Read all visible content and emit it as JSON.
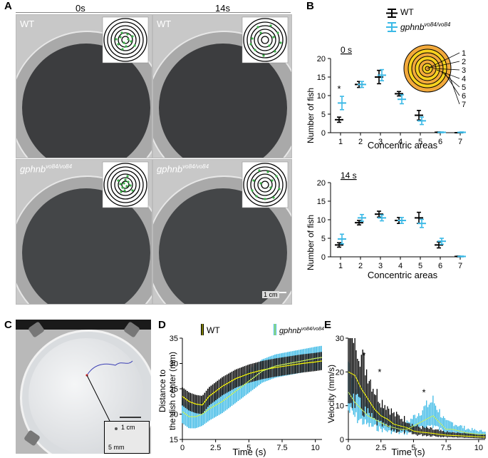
{
  "panels": {
    "a": {
      "letter": "A",
      "col_times": [
        "0s",
        "14s"
      ],
      "genotypes": [
        "WT",
        "gphnb",
        "vo84/vo84"
      ],
      "scale": "1 cm"
    },
    "b": {
      "letter": "B",
      "legend": {
        "wt": "WT",
        "mut_base": "gphnb",
        "mut_sup": "vo84/vo84"
      },
      "top_time": "0 s",
      "bottom_time": "14 s",
      "ylabel": "Number of fish",
      "xlabel": "Concentric areas",
      "star": "*",
      "ring_labels": [
        "1",
        "2",
        "3",
        "4",
        "5",
        "6",
        "7"
      ]
    },
    "c": {
      "letter": "C",
      "scale_big": "1 cm",
      "scale_small": "5 mm"
    },
    "d": {
      "letter": "D",
      "legend": {
        "wt": "WT",
        "mut_base": "gphnb",
        "mut_sup": "vo84/vo84"
      },
      "ylabel_1": "Distance to",
      "ylabel_2": "the dish center (mm)",
      "xlabel": "Time (s)"
    },
    "e": {
      "letter": "E",
      "ylabel": "Velocity (mm/s)",
      "xlabel": "Time (s)",
      "stars": [
        "*",
        "*",
        "*"
      ]
    }
  },
  "colors": {
    "wt": "#000000",
    "mut": "#3bb9e6",
    "mean": "#ffff00",
    "ring_outer": "#f2a93b",
    "ring_inner": "#f7d21e"
  },
  "chart_data": [
    {
      "type": "scatter",
      "title": "0 s",
      "xlabel": "Concentric areas",
      "ylabel": "Number of fish",
      "categories": [
        1,
        2,
        3,
        4,
        5,
        6,
        7
      ],
      "ylim": [
        0,
        20
      ],
      "yticks": [
        0,
        5,
        10,
        15,
        20
      ],
      "series": [
        {
          "name": "WT",
          "values": [
            3.5,
            13,
            15,
            10.5,
            4.7,
            0.1,
            0.0
          ],
          "err": [
            0.7,
            0.8,
            1.8,
            0.6,
            1.3,
            0.1,
            0.0
          ]
        },
        {
          "name": "gphnbvo84/vo84",
          "values": [
            8,
            13,
            15.5,
            9,
            3.2,
            0.1,
            0.1
          ],
          "err": [
            1.8,
            0.8,
            1.5,
            1.2,
            1.0,
            0.1,
            0.1
          ]
        }
      ],
      "annotations": [
        {
          "x": 1,
          "text": "*"
        }
      ]
    },
    {
      "type": "scatter",
      "title": "14 s",
      "xlabel": "Concentric areas",
      "ylabel": "Number of fish",
      "categories": [
        1,
        2,
        3,
        4,
        5,
        6,
        7
      ],
      "ylim": [
        0,
        20
      ],
      "yticks": [
        0,
        5,
        10,
        15,
        20
      ],
      "series": [
        {
          "name": "WT",
          "values": [
            3.2,
            9.2,
            11.5,
            9.8,
            10.5,
            3.2,
            0.1
          ],
          "err": [
            0.6,
            0.6,
            0.8,
            0.8,
            1.5,
            0.8,
            0.1
          ]
        },
        {
          "name": "gphnbvo84/vo84",
          "values": [
            4.8,
            10.5,
            10.5,
            9.8,
            9,
            4.2,
            0.1
          ],
          "err": [
            1.3,
            0.9,
            0.8,
            0.8,
            1.1,
            0.8,
            0.1
          ]
        }
      ]
    },
    {
      "type": "line",
      "xlabel": "Time (s)",
      "ylabel": "Distance to the dish center (mm)",
      "xlim": [
        0,
        10.5
      ],
      "ylim": [
        15,
        35
      ],
      "xticks": [
        0,
        2.5,
        5,
        7.5,
        10
      ],
      "yticks": [
        15,
        20,
        25,
        30,
        35
      ],
      "series": [
        {
          "name": "WT",
          "x": [
            0,
            0.5,
            1,
            1.5,
            2,
            3,
            4,
            5,
            6,
            7,
            8,
            9,
            10,
            10.5
          ],
          "values": [
            23.5,
            22.5,
            22,
            21.8,
            23.5,
            25.5,
            27,
            28,
            28.7,
            29.2,
            29.6,
            30,
            30.3,
            30.5
          ],
          "err": 1.8
        },
        {
          "name": "gphnbvo84/vo84",
          "x": [
            0,
            0.5,
            1,
            1.5,
            2,
            3,
            4,
            5,
            6,
            7,
            8,
            9,
            10,
            10.5
          ],
          "values": [
            20.5,
            19.5,
            19.5,
            20,
            21,
            22.5,
            24.5,
            26.5,
            28.5,
            29.5,
            30,
            30.5,
            31,
            31.2
          ],
          "err": 2.3
        }
      ]
    },
    {
      "type": "line",
      "xlabel": "Time (s)",
      "ylabel": "Velocity (mm/s)",
      "xlim": [
        0,
        10.5
      ],
      "ylim": [
        0,
        30
      ],
      "xticks": [
        0,
        2.5,
        5,
        7.5,
        10
      ],
      "yticks": [
        0,
        10,
        20,
        30
      ],
      "series": [
        {
          "name": "WT",
          "x": [
            0,
            0.5,
            1,
            1.5,
            2,
            2.5,
            3,
            3.5,
            4,
            4.5,
            5,
            5.5,
            6,
            6.5,
            7,
            7.5,
            8,
            9,
            10,
            10.5
          ],
          "values": [
            20,
            19,
            15,
            12,
            9,
            7,
            6,
            4.5,
            4,
            3.5,
            2.5,
            2.2,
            2,
            1.8,
            1.5,
            1.3,
            1.2,
            1,
            0.8,
            0.7
          ]
        },
        {
          "name": "gphnbvo84/vo84",
          "x": [
            0,
            0.5,
            1,
            1.5,
            2,
            2.5,
            3,
            3.5,
            4,
            4.5,
            5,
            5.5,
            6,
            6.5,
            7,
            7.5,
            8,
            9,
            10,
            10.5
          ],
          "values": [
            14,
            11,
            9,
            7,
            6,
            5,
            4,
            3.5,
            3,
            3,
            4,
            5,
            6,
            7,
            5,
            3,
            3,
            2,
            1.5,
            1.5
          ]
        }
      ],
      "annotations": [
        {
          "x": 1.2,
          "text": "*"
        },
        {
          "x": 2.4,
          "text": "*"
        },
        {
          "x": 5.8,
          "text": "*"
        }
      ]
    }
  ]
}
